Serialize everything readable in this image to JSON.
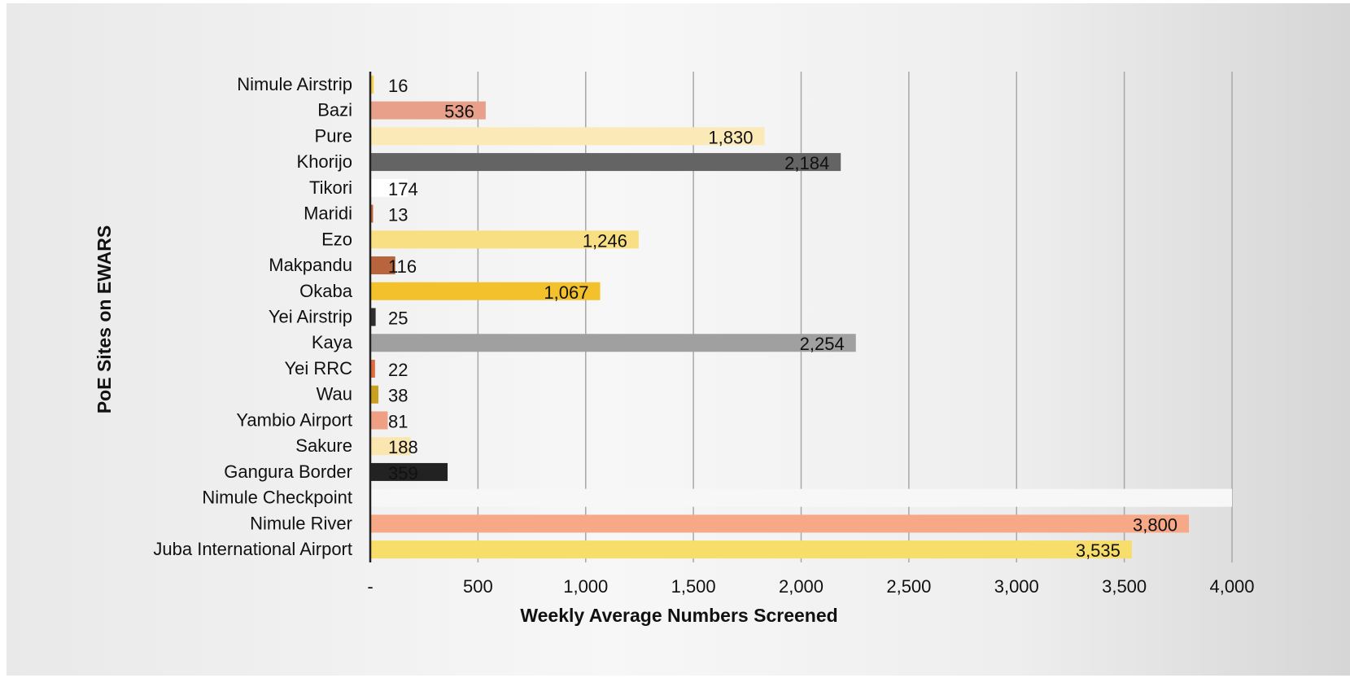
{
  "chart_data": {
    "type": "bar",
    "orientation": "horizontal",
    "title": "",
    "xlabel": "Weekly Average Numbers Screened",
    "ylabel": "PoE Sites on EWARS",
    "xlim": [
      0,
      4000
    ],
    "x_ticks": [
      0,
      500,
      1000,
      1500,
      2000,
      2500,
      3000,
      3500,
      4000
    ],
    "x_tick_labels": [
      "-",
      "500",
      "1,000",
      "1,500",
      "2,000",
      "2,500",
      "3,000",
      "3,500",
      "4,000"
    ],
    "grid": "vertical",
    "legend": "none",
    "categories": [
      "Nimule Airstrip",
      "Bazi",
      "Pure",
      "Khorijo",
      "Tikori",
      "Maridi",
      "Ezo",
      "Makpandu",
      "Okaba",
      "Yei Airstrip",
      "Kaya",
      "Yei RRC",
      "Wau",
      "Yambio Airport",
      "Sakure",
      "Gangura Border",
      "Nimule Checkpoint",
      "Nimule River",
      "Juba International Airport"
    ],
    "values": [
      16,
      536,
      1830,
      2184,
      174,
      13,
      1246,
      116,
      1067,
      25,
      2254,
      22,
      38,
      81,
      188,
      359,
      null,
      3800,
      3535
    ],
    "data_labels": [
      "16",
      "536",
      "1,830",
      "2,184",
      "174",
      "13",
      "1,246",
      "116",
      "1,067",
      "25",
      "2,254",
      "22",
      "38",
      "81",
      "188",
      "359",
      "",
      "3,800",
      "3,535"
    ],
    "colors": [
      "#f4d24e",
      "#e8a08a",
      "#fbe9b8",
      "#646464",
      "#ffffff",
      "#c0663a",
      "#f8df84",
      "#b8643c",
      "#f2c12c",
      "#2e2e2e",
      "#a0a0a0",
      "#e06a3a",
      "#c9a020",
      "#ee9f84",
      "#fbe6b0",
      "#222222",
      "#f7f7f7",
      "#f7a886",
      "#f7dd6a"
    ]
  }
}
